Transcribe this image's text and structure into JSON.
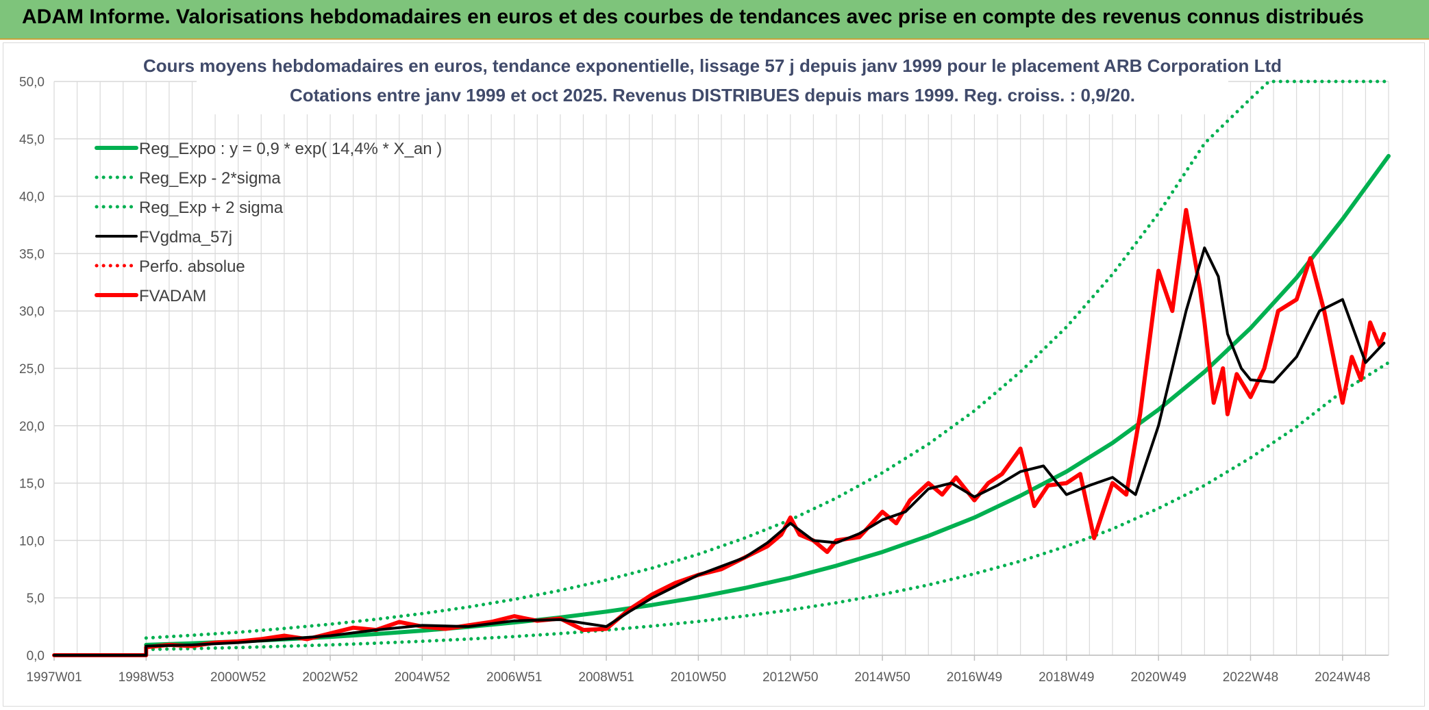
{
  "banner": {
    "title": "ADAM Informe. Valorisations hebdomadaires en euros et des courbes de tendances avec prise en compte des revenus connus distribués"
  },
  "colors": {
    "banner": "#7ec47b",
    "reg_expo": "#00b050",
    "fvgdma": "#000000",
    "fvadam": "#ff0000",
    "grid": "#d9d9d9"
  },
  "chart_data": {
    "type": "line",
    "title": "Cours moyens hebdomadaires en euros, tendance exponentielle, lissage 57 j depuis janv 1999 pour le placement ARB Corporation Ltd",
    "subtitle": "Cotations entre janv 1999 et oct 2025. Revenus DISTRIBUES depuis mars 1999. Reg. croiss. : 0,9/20.",
    "xlabel": "",
    "ylabel": "",
    "ylim": [
      0,
      50
    ],
    "xlim": [
      1997.0,
      2026.0
    ],
    "y_ticks": [
      "0,0",
      "5,0",
      "10,0",
      "15,0",
      "20,0",
      "25,0",
      "30,0",
      "35,0",
      "40,0",
      "45,0",
      "50,0"
    ],
    "x_ticks": [
      {
        "label": "1997W01",
        "x": 1997.0
      },
      {
        "label": "1998W53",
        "x": 1999.0
      },
      {
        "label": "2000W52",
        "x": 2001.0
      },
      {
        "label": "2002W52",
        "x": 2003.0
      },
      {
        "label": "2004W52",
        "x": 2005.0
      },
      {
        "label": "2006W51",
        "x": 2007.0
      },
      {
        "label": "2008W51",
        "x": 2009.0
      },
      {
        "label": "2010W50",
        "x": 2011.0
      },
      {
        "label": "2012W50",
        "x": 2013.0
      },
      {
        "label": "2014W50",
        "x": 2015.0
      },
      {
        "label": "2016W49",
        "x": 2017.0
      },
      {
        "label": "2018W49",
        "x": 2019.0
      },
      {
        "label": "2020W49",
        "x": 2021.0
      },
      {
        "label": "2022W48",
        "x": 2023.0
      },
      {
        "label": "2024W48",
        "x": 2025.0
      }
    ],
    "grid": true,
    "legend_position": "top-left",
    "series": [
      {
        "name": "Reg_Expo : y = 0,9 * exp( 14,4% *  X_an )",
        "style": "solid-thick",
        "color": "#00b050",
        "x": [
          1999.0,
          2000.0,
          2001.0,
          2002.0,
          2003.0,
          2004.0,
          2005.0,
          2006.0,
          2007.0,
          2008.0,
          2009.0,
          2010.0,
          2011.0,
          2012.0,
          2013.0,
          2014.0,
          2015.0,
          2016.0,
          2017.0,
          2018.0,
          2019.0,
          2020.0,
          2021.0,
          2022.0,
          2023.0,
          2024.0,
          2025.0,
          2026.0
        ],
        "y": [
          0.9,
          1.04,
          1.2,
          1.39,
          1.6,
          1.85,
          2.14,
          2.47,
          2.85,
          3.29,
          3.8,
          4.38,
          5.06,
          5.85,
          6.75,
          7.8,
          9.0,
          10.4,
          12.0,
          13.9,
          16.0,
          18.5,
          21.4,
          24.7,
          28.5,
          32.9,
          38.0,
          43.5
        ]
      },
      {
        "name": "Reg_Exp - 2*sigma",
        "style": "dotted",
        "color": "#00b050",
        "x": [
          1999.0,
          2000.0,
          2001.0,
          2002.0,
          2003.0,
          2004.0,
          2005.0,
          2006.0,
          2007.0,
          2008.0,
          2009.0,
          2010.0,
          2011.0,
          2012.0,
          2013.0,
          2014.0,
          2015.0,
          2016.0,
          2017.0,
          2018.0,
          2019.0,
          2020.0,
          2021.0,
          2022.0,
          2023.0,
          2024.0,
          2025.0,
          2026.0
        ],
        "y": [
          0.5,
          0.58,
          0.67,
          0.78,
          0.9,
          1.05,
          1.22,
          1.41,
          1.63,
          1.89,
          2.19,
          2.54,
          2.94,
          3.41,
          3.95,
          4.57,
          5.3,
          6.13,
          7.1,
          8.2,
          9.5,
          11.0,
          12.8,
          14.8,
          17.2,
          19.9,
          23.0,
          25.5
        ]
      },
      {
        "name": "Reg_Exp + 2 sigma",
        "style": "dotted",
        "color": "#00b050",
        "x": [
          1999.0,
          2000.0,
          2001.0,
          2002.0,
          2003.0,
          2004.0,
          2005.0,
          2006.0,
          2007.0,
          2008.0,
          2009.0,
          2010.0,
          2011.0,
          2012.0,
          2013.0,
          2014.0,
          2015.0,
          2016.0,
          2017.0,
          2018.0,
          2019.0,
          2020.0,
          2021.0,
          2022.0,
          2023.0,
          2023.4,
          2024.0,
          2025.0,
          2026.0
        ],
        "y": [
          1.5,
          1.74,
          2.0,
          2.33,
          2.7,
          3.13,
          3.63,
          4.2,
          4.87,
          5.65,
          6.55,
          7.6,
          8.8,
          10.2,
          11.8,
          13.7,
          15.9,
          18.4,
          21.3,
          24.7,
          28.6,
          33.2,
          38.5,
          44.6,
          48.5,
          50.0,
          50.0,
          50.0,
          50.0
        ]
      },
      {
        "name": "FVgdma_57j",
        "style": "solid",
        "color": "#000000",
        "x": [
          1997.0,
          1999.0,
          1999.0,
          2000.0,
          2001.0,
          2002.0,
          2003.0,
          2004.0,
          2005.0,
          2006.0,
          2007.0,
          2008.0,
          2009.0,
          2009.5,
          2010.0,
          2010.5,
          2011.0,
          2012.0,
          2012.5,
          2013.0,
          2013.5,
          2014.0,
          2014.5,
          2015.0,
          2015.5,
          2016.0,
          2016.5,
          2017.0,
          2017.5,
          2018.0,
          2018.5,
          2019.0,
          2019.5,
          2020.0,
          2020.5,
          2021.0,
          2021.3,
          2021.6,
          2022.0,
          2022.3,
          2022.5,
          2022.8,
          2023.0,
          2023.5,
          2024.0,
          2024.5,
          2025.0,
          2025.5,
          2025.9
        ],
        "y": [
          0,
          0,
          0.8,
          0.9,
          1.1,
          1.4,
          1.7,
          2.2,
          2.6,
          2.5,
          3.0,
          3.1,
          2.5,
          3.8,
          5.0,
          6.0,
          7.0,
          8.5,
          9.8,
          11.5,
          10.0,
          9.8,
          10.6,
          11.8,
          12.5,
          14.5,
          15.0,
          13.8,
          14.8,
          16.0,
          16.5,
          14.0,
          14.8,
          15.5,
          14.0,
          20.0,
          25.0,
          30.0,
          35.5,
          33.0,
          28.0,
          25.0,
          24.0,
          23.8,
          26.0,
          30.0,
          31.0,
          25.5,
          27.2
        ]
      },
      {
        "name": "Perfo. absolue",
        "style": "dotted",
        "color": "#ff0000",
        "x": [],
        "y": []
      },
      {
        "name": "FVADAM",
        "style": "solid-thick",
        "color": "#ff0000",
        "x": [
          1997.0,
          1999.0,
          1999.0,
          1999.5,
          2000.0,
          2000.5,
          2001.0,
          2001.5,
          2002.0,
          2002.5,
          2003.0,
          2003.5,
          2004.0,
          2004.5,
          2005.0,
          2005.5,
          2006.0,
          2006.5,
          2007.0,
          2007.5,
          2008.0,
          2008.5,
          2009.0,
          2009.5,
          2010.0,
          2010.5,
          2011.0,
          2011.5,
          2012.0,
          2012.5,
          2012.8,
          2013.0,
          2013.2,
          2013.5,
          2013.8,
          2014.0,
          2014.5,
          2015.0,
          2015.3,
          2015.6,
          2016.0,
          2016.3,
          2016.6,
          2017.0,
          2017.3,
          2017.6,
          2018.0,
          2018.3,
          2018.6,
          2019.0,
          2019.3,
          2019.6,
          2020.0,
          2020.3,
          2020.6,
          2021.0,
          2021.3,
          2021.6,
          2021.9,
          2022.0,
          2022.2,
          2022.4,
          2022.5,
          2022.7,
          2023.0,
          2023.3,
          2023.6,
          2024.0,
          2024.3,
          2024.6,
          2024.8,
          2025.0,
          2025.2,
          2025.4,
          2025.6,
          2025.8,
          2025.9
        ],
        "y": [
          0,
          0,
          0.7,
          0.9,
          0.8,
          1.1,
          1.2,
          1.4,
          1.7,
          1.4,
          1.9,
          2.4,
          2.2,
          2.9,
          2.5,
          2.3,
          2.6,
          2.9,
          3.4,
          3.0,
          3.2,
          2.2,
          2.3,
          4.0,
          5.3,
          6.3,
          7.0,
          7.5,
          8.5,
          9.5,
          10.5,
          12.0,
          10.5,
          10.0,
          9.0,
          10.0,
          10.3,
          12.5,
          11.5,
          13.5,
          15.0,
          14.0,
          15.5,
          13.5,
          15.0,
          15.8,
          18.0,
          13.0,
          14.8,
          15.0,
          15.8,
          10.2,
          15.0,
          14.0,
          21.0,
          33.5,
          30.0,
          38.8,
          32.0,
          29.0,
          22.0,
          25.0,
          21.0,
          24.5,
          22.5,
          25.0,
          30.0,
          31.0,
          34.6,
          30.0,
          26.0,
          22.0,
          26.0,
          24.0,
          29.0,
          27.0,
          28.0
        ]
      }
    ]
  }
}
